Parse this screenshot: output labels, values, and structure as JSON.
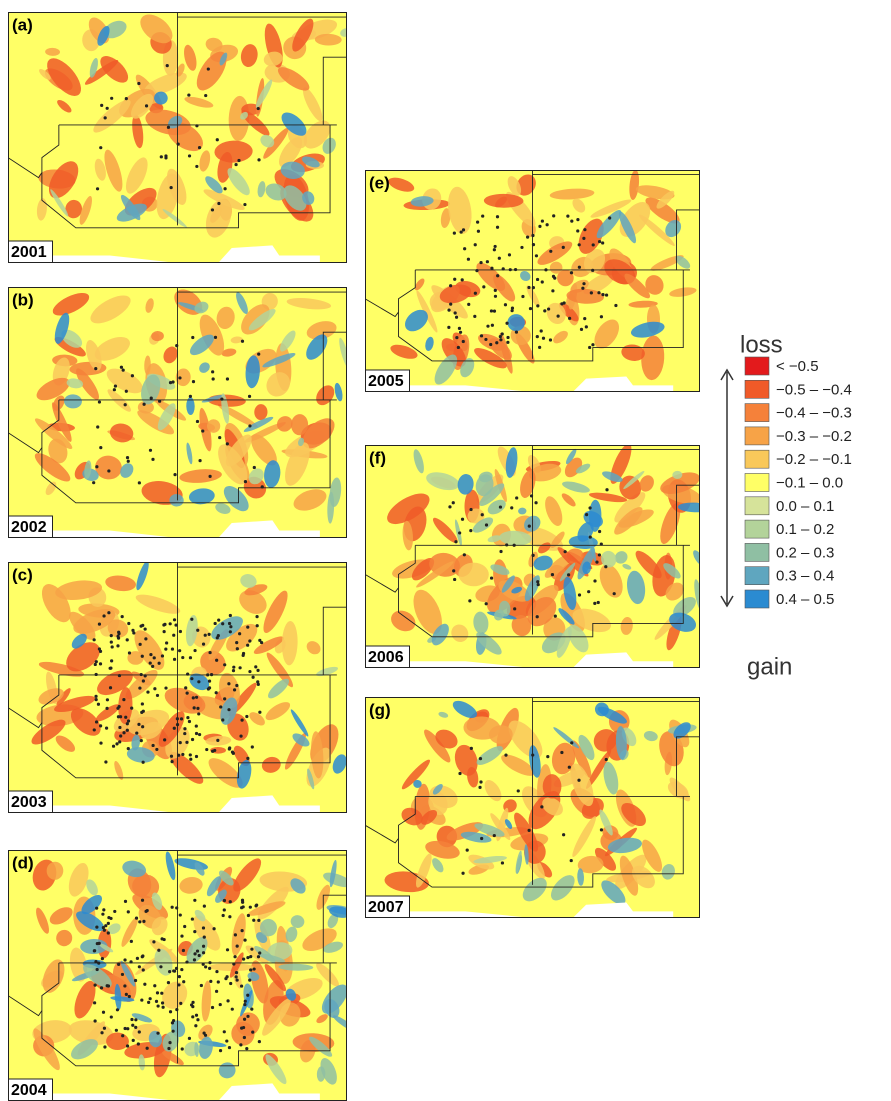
{
  "panels": [
    {
      "label": "(a)",
      "year": "2001"
    },
    {
      "label": "(b)",
      "year": "2002"
    },
    {
      "label": "(c)",
      "year": "2003"
    },
    {
      "label": "(d)",
      "year": "2004"
    },
    {
      "label": "(e)",
      "year": "2005"
    },
    {
      "label": "(f)",
      "year": "2006"
    },
    {
      "label": "(g)",
      "year": "2007"
    }
  ],
  "legend": {
    "top": "loss",
    "bottom": "gain",
    "items": [
      {
        "label": "< −0.5",
        "color": "#e31a1c"
      },
      {
        "label": "−0.5 – −0.4",
        "color": "#f05a28"
      },
      {
        "label": "−0.4 – −0.3",
        "color": "#f5813a"
      },
      {
        "label": "−0.3 – −0.2",
        "color": "#f7a347"
      },
      {
        "label": "−0.2 – −0.1",
        "color": "#f9c85a"
      },
      {
        "label": "−0.1 – 0.0",
        "color": "#ffff66"
      },
      {
        "label": "0.0 – 0.1",
        "color": "#d6e39a"
      },
      {
        "label": "0.1 – 0.2",
        "color": "#b3d39a"
      },
      {
        "label": "0.2 – 0.3",
        "color": "#8fbfa3"
      },
      {
        "label": "0.3 – 0.4",
        "color": "#5fa6bf"
      },
      {
        "label": "0.4 – 0.5",
        "color": "#2b8bd1"
      }
    ]
  }
}
